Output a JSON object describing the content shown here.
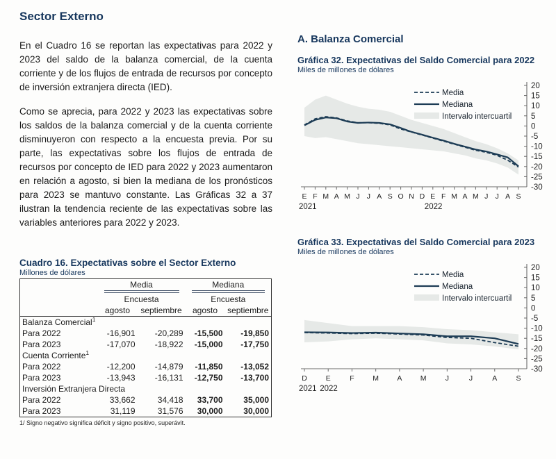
{
  "colors": {
    "heading_navy": "#17375d",
    "line_navy": "#1d3c55",
    "band_gray": "#e6e9e7",
    "axis_gray": "#6a6a6a",
    "text": "#1c1c1c"
  },
  "left": {
    "title": "Sector Externo",
    "paragraph1": "En el Cuadro 16 se reportan las expectativas para 2022 y 2023 del saldo de la balanza comercial, de la cuenta corriente y de los flujos de entrada de recursos por concepto de inversión extranjera directa (IED).",
    "paragraph2": "Como se aprecia, para 2022 y 2023 las expectativas sobre los saldos de la balanza comercial y de la cuenta corriente disminuyeron con respecto a la encuesta previa. Por su parte, las expectativas sobre los flujos de entrada de recursos por concepto de IED para 2022 y 2023 aumentaron en relación a agosto, si bien la mediana de los pronósticos para 2023 se mantuvo constante. Las Gráficas 32 a 37 ilustran la tendencia reciente de las expectativas sobre las variables anteriores para 2022 y 2023."
  },
  "table": {
    "title": "Cuadro 16. Expectativas sobre el Sector Externo",
    "subtitle": "Millones de dólares",
    "col_groups": [
      "Media",
      "Mediana"
    ],
    "encuesta": "Encuesta",
    "col_headers": [
      "agosto",
      "septiembre",
      "agosto",
      "septiembre"
    ],
    "sections": [
      {
        "label": "Balanza Comercial",
        "sup": "1",
        "rows": [
          {
            "label": "Para 2022",
            "values": [
              "-16,901",
              "-20,289",
              "-15,500",
              "-19,850"
            ]
          },
          {
            "label": "Para 2023",
            "values": [
              "-17,070",
              "-18,922",
              "-15,000",
              "-17,750"
            ]
          }
        ]
      },
      {
        "label": "Cuenta Corriente",
        "sup": "1",
        "rows": [
          {
            "label": "Para 2022",
            "values": [
              "-12,200",
              "-14,879",
              "-11,850",
              "-13,052"
            ]
          },
          {
            "label": "Para 2023",
            "values": [
              "-13,943",
              "-16,131",
              "-12,750",
              "-13,700"
            ]
          }
        ]
      },
      {
        "label": "Inversión Extranjera Directa",
        "sup": "",
        "rows": [
          {
            "label": "Para 2022",
            "values": [
              "33,662",
              "34,418",
              "33,700",
              "35,000"
            ]
          },
          {
            "label": "Para 2023",
            "values": [
              "31,119",
              "31,576",
              "30,000",
              "30,000"
            ]
          }
        ]
      }
    ],
    "footnote": "1/ Signo negativo significa déficit y signo positivo, superávit."
  },
  "right": {
    "section_title": "A.  Balanza Comercial"
  },
  "chart_data": [
    {
      "type": "line",
      "title": "Gráfica 32. Expectativas del Saldo Comercial para 2022",
      "subtitle": "Miles de millones de dólares",
      "ylim": [
        -30,
        20
      ],
      "ytick_step": 5,
      "yaxis_side": "right",
      "grid": false,
      "legend_position": "top-right",
      "x": [
        "E",
        "F",
        "M",
        "A",
        "M",
        "J",
        "J",
        "A",
        "S",
        "O",
        "N",
        "D",
        "E",
        "F",
        "M",
        "A",
        "M",
        "J",
        "J",
        "A",
        "S"
      ],
      "year_labels": [
        {
          "text": "2021",
          "index": 0
        },
        {
          "text": "2022",
          "index": 12
        }
      ],
      "series": [
        {
          "name": "Media",
          "style": "dashed",
          "values": [
            0.5,
            3.5,
            4.6,
            4.0,
            2.5,
            1.6,
            1.6,
            1.3,
            0.5,
            -1.5,
            -3.0,
            -4.5,
            -6.0,
            -7.5,
            -9.0,
            -10.5,
            -12.0,
            -13.0,
            -14.5,
            -16.9,
            -20.3
          ]
        },
        {
          "name": "Mediana",
          "style": "solid",
          "values": [
            0.3,
            3.0,
            4.2,
            3.8,
            2.2,
            1.5,
            1.7,
            1.5,
            0.8,
            -1.0,
            -2.9,
            -4.3,
            -5.8,
            -7.2,
            -8.8,
            -10.2,
            -11.6,
            -12.6,
            -14.0,
            -15.5,
            -19.9
          ]
        }
      ],
      "band": {
        "name": "Intervalo intercuartil",
        "upper": [
          9.0,
          13.0,
          15.0,
          13.0,
          11.0,
          9.5,
          8.5,
          8.0,
          7.0,
          5.0,
          3.0,
          1.5,
          0.0,
          -1.5,
          -3.5,
          -5.5,
          -7.5,
          -9.0,
          -11.0,
          -13.5,
          -17.0
        ],
        "lower": [
          -5.0,
          -6.0,
          -5.5,
          -6.5,
          -7.5,
          -8.5,
          -9.0,
          -9.5,
          -10.0,
          -10.5,
          -11.0,
          -11.5,
          -12.0,
          -12.5,
          -13.5,
          -14.5,
          -16.0,
          -17.0,
          -18.5,
          -20.5,
          -24.0
        ]
      }
    },
    {
      "type": "line",
      "title": "Gráfica 33. Expectativas del Saldo Comercial para 2023",
      "subtitle": "Miles de millones de dólares",
      "ylim": [
        -30,
        20
      ],
      "ytick_step": 5,
      "yaxis_side": "right",
      "grid": false,
      "legend_position": "top-right",
      "x": [
        "D",
        "E",
        "F",
        "M",
        "A",
        "M",
        "J",
        "J",
        "A",
        "S"
      ],
      "year_labels": [
        {
          "text": "2021",
          "index": 0
        },
        {
          "text": "2022",
          "index": 1
        }
      ],
      "series": [
        {
          "name": "Media",
          "style": "dashed",
          "values": [
            -12.2,
            -12.4,
            -12.7,
            -12.5,
            -12.9,
            -13.4,
            -14.6,
            -15.0,
            -17.1,
            -18.9
          ]
        },
        {
          "name": "Mediana",
          "style": "solid",
          "values": [
            -12.0,
            -12.1,
            -12.4,
            -12.2,
            -12.6,
            -13.0,
            -14.0,
            -14.0,
            -15.0,
            -17.8
          ]
        }
      ],
      "band": {
        "name": "Intervalo intercuartil",
        "upper": [
          -6.0,
          -7.5,
          -9.0,
          -9.0,
          -9.0,
          -9.5,
          -10.5,
          -11.0,
          -12.0,
          -13.0
        ],
        "lower": [
          -17.0,
          -16.5,
          -15.5,
          -15.0,
          -15.5,
          -16.0,
          -17.5,
          -18.0,
          -19.0,
          -20.5
        ]
      }
    }
  ]
}
